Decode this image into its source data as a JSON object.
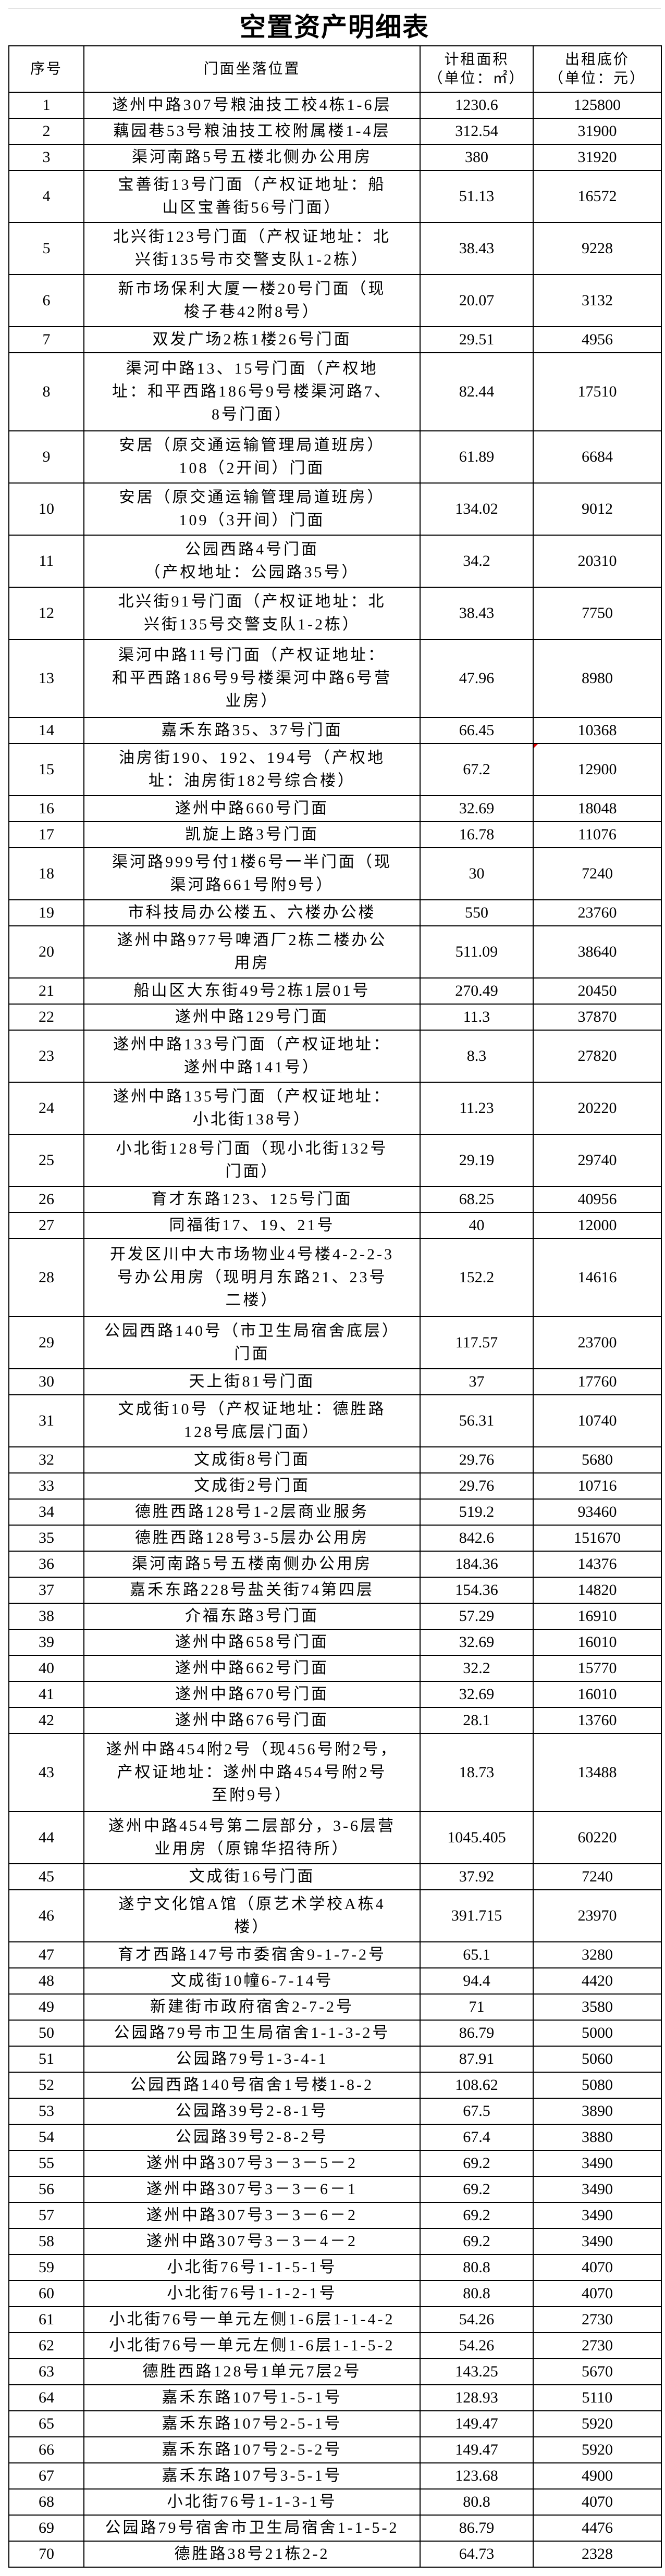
{
  "title": "空置资产明细表",
  "headers": {
    "no": "序号",
    "address": "门面坐落位置",
    "area": "计租面积",
    "area_unit": "（单位：㎡）",
    "price": "出租底价",
    "price_unit": "（单位：元）"
  },
  "colors": {
    "border": "#000000",
    "comment_marker": "#e00000"
  },
  "rows": [
    {
      "no": "1",
      "address": "遂州中路307号粮油技工校4栋1-6层",
      "area": "1230.6",
      "price": "125800"
    },
    {
      "no": "2",
      "address": "藕园巷53号粮油技工校附属楼1-4层",
      "area": "312.54",
      "price": "31900"
    },
    {
      "no": "3",
      "address": "渠河南路5号五楼北侧办公用房",
      "area": "380",
      "price": "31920"
    },
    {
      "no": "4",
      "address": "宝善街13号门面（产权证地址：船\n山区宝善街56号门面）",
      "area": "51.13",
      "price": "16572"
    },
    {
      "no": "5",
      "address": "北兴街123号门面（产权证地址：北\n兴街135号市交警支队1-2栋）",
      "area": "38.43",
      "price": "9228"
    },
    {
      "no": "6",
      "address": "新市场保利大厦一楼20号门面（现\n梭子巷42附8号）",
      "area": "20.07",
      "price": "3132"
    },
    {
      "no": "7",
      "address": "双发广场2栋1楼26号门面",
      "area": "29.51",
      "price": "4956"
    },
    {
      "no": "8",
      "address": "渠河中路13、15号门面（产权地\n址：和平西路186号9号楼渠河路7、\n8号门面）",
      "area": "82.44",
      "price": "17510"
    },
    {
      "no": "9",
      "address": "安居（原交通运输管理局道班房）\n108（2开间）门面",
      "area": "61.89",
      "price": "6684"
    },
    {
      "no": "10",
      "address": "安居（原交通运输管理局道班房）\n109（3开间）门面",
      "area": "134.02",
      "price": "9012"
    },
    {
      "no": "11",
      "address": "公园西路4号门面\n（产权地址：公园路35号）",
      "area": "34.2",
      "price": "20310"
    },
    {
      "no": "12",
      "address": "北兴街91号门面（产权证地址：北\n兴街135号交警支队1-2栋）",
      "area": "38.43",
      "price": "7750"
    },
    {
      "no": "13",
      "address": "渠河中路11号门面（产权证地址：\n和平西路186号9号楼渠河中路6号营\n业房）",
      "area": "47.96",
      "price": "8980"
    },
    {
      "no": "14",
      "address": "嘉禾东路35、37号门面",
      "area": "66.45",
      "price": "10368"
    },
    {
      "no": "15",
      "address": "油房街190、192、194号（产权地\n址：油房街182号综合楼）",
      "area": "67.2",
      "price": "12900",
      "comment": true
    },
    {
      "no": "16",
      "address": "遂州中路660号门面",
      "area": "32.69",
      "price": "18048"
    },
    {
      "no": "17",
      "address": "凯旋上路3号门面",
      "area": "16.78",
      "price": "11076"
    },
    {
      "no": "18",
      "address": "渠河路999号付1楼6号一半门面（现\n渠河路661号附9号）",
      "area": "30",
      "price": "7240"
    },
    {
      "no": "19",
      "address": "市科技局办公楼五、六楼办公楼",
      "area": "550",
      "price": "23760"
    },
    {
      "no": "20",
      "address": "遂州中路977号啤酒厂2栋二楼办公\n用房",
      "area": "511.09",
      "price": "38640"
    },
    {
      "no": "21",
      "address": "船山区大东街49号2栋1层01号",
      "area": "270.49",
      "price": "20450"
    },
    {
      "no": "22",
      "address": "遂州中路129号门面",
      "area": "11.3",
      "price": "37870"
    },
    {
      "no": "23",
      "address": "遂州中路133号门面（产权证地址：\n遂州中路141号）",
      "area": "8.3",
      "price": "27820"
    },
    {
      "no": "24",
      "address": "遂州中路135号门面（产权证地址：\n小北街138号）",
      "area": "11.23",
      "price": "20220"
    },
    {
      "no": "25",
      "address": "小北街128号门面（现小北街132号\n门面）",
      "area": "29.19",
      "price": "29740"
    },
    {
      "no": "26",
      "address": "育才东路123、125号门面",
      "area": "68.25",
      "price": "40956"
    },
    {
      "no": "27",
      "address": "同福街17、19、21号",
      "area": "40",
      "price": "12000"
    },
    {
      "no": "28",
      "address": "开发区川中大市场物业4号楼4-2-2-3\n号办公用房（现明月东路21、23号\n二楼）",
      "area": "152.2",
      "price": "14616"
    },
    {
      "no": "29",
      "address": "公园西路140号（市卫生局宿舍底层）\n门面",
      "area": "117.57",
      "price": "23700"
    },
    {
      "no": "30",
      "address": "天上街81号门面",
      "area": "37",
      "price": "17760"
    },
    {
      "no": "31",
      "address": "文成街10号（产权证地址：德胜路\n128号底层门面）",
      "area": "56.31",
      "price": "10740"
    },
    {
      "no": "32",
      "address": "文成街8号门面",
      "area": "29.76",
      "price": "5680"
    },
    {
      "no": "33",
      "address": "文成街2号门面",
      "area": "29.76",
      "price": "10716"
    },
    {
      "no": "34",
      "address": "德胜西路128号1-2层商业服务",
      "area": "519.2",
      "price": "93460"
    },
    {
      "no": "35",
      "address": "德胜西路128号3-5层办公用房",
      "area": "842.6",
      "price": "151670"
    },
    {
      "no": "36",
      "address": "渠河南路5号五楼南侧办公用房",
      "area": "184.36",
      "price": "14376"
    },
    {
      "no": "37",
      "address": "嘉禾东路228号盐关街74第四层",
      "area": "154.36",
      "price": "14820"
    },
    {
      "no": "38",
      "address": "介福东路3号门面",
      "area": "57.29",
      "price": "16910"
    },
    {
      "no": "39",
      "address": "遂州中路658号门面",
      "area": "32.69",
      "price": "16010"
    },
    {
      "no": "40",
      "address": "遂州中路662号门面",
      "area": "32.2",
      "price": "15770"
    },
    {
      "no": "41",
      "address": "遂州中路670号门面",
      "area": "32.69",
      "price": "16010"
    },
    {
      "no": "42",
      "address": "遂州中路676号门面",
      "area": "28.1",
      "price": "13760"
    },
    {
      "no": "43",
      "address": "遂州中路454附2号（现456号附2号，\n产权证地址：遂州中路454号附2号\n至附9号）",
      "area": "18.73",
      "price": "13488"
    },
    {
      "no": "44",
      "address": "遂州中路454号第二层部分，3-6层营\n业用房（原锦华招待所）",
      "area": "1045.405",
      "price": "60220"
    },
    {
      "no": "45",
      "address": "文成街16号门面",
      "area": "37.92",
      "price": "7240"
    },
    {
      "no": "46",
      "address": "遂宁文化馆A馆（原艺术学校A栋4\n楼）",
      "area": "391.715",
      "price": "23970"
    },
    {
      "no": "47",
      "address": "育才西路147号市委宿舍9-1-7-2号",
      "area": "65.1",
      "price": "3280"
    },
    {
      "no": "48",
      "address": "文成街10幢6-7-14号",
      "area": "94.4",
      "price": "4420"
    },
    {
      "no": "49",
      "address": "新建街市政府宿舍2-7-2号",
      "area": "71",
      "price": "3580"
    },
    {
      "no": "50",
      "address": "公园路79号市卫生局宿舍1-1-3-2号",
      "area": "86.79",
      "price": "5000"
    },
    {
      "no": "51",
      "address": "公园路79号1-3-4-1",
      "area": "87.91",
      "price": "5060"
    },
    {
      "no": "52",
      "address": "公园西路140号宿舍1号楼1-8-2",
      "area": "108.62",
      "price": "5080"
    },
    {
      "no": "53",
      "address": "公园路39号2-8-1号",
      "area": "67.5",
      "price": "3890"
    },
    {
      "no": "54",
      "address": "公园路39号2-8-2号",
      "area": "67.4",
      "price": "3880"
    },
    {
      "no": "55",
      "address": "遂州中路307号3－3－5－2",
      "area": "69.2",
      "price": "3490"
    },
    {
      "no": "56",
      "address": "遂州中路307号3－3－6－1",
      "area": "69.2",
      "price": "3490"
    },
    {
      "no": "57",
      "address": "遂州中路307号3－3－6－2",
      "area": "69.2",
      "price": "3490"
    },
    {
      "no": "58",
      "address": "遂州中路307号3－3－4－2",
      "area": "69.2",
      "price": "3490"
    },
    {
      "no": "59",
      "address": "小北街76号1-1-5-1号",
      "area": "80.8",
      "price": "4070"
    },
    {
      "no": "60",
      "address": "小北街76号1-1-2-1号",
      "area": "80.8",
      "price": "4070"
    },
    {
      "no": "61",
      "address": "小北街76号一单元左侧1-6层1-1-4-2",
      "area": "54.26",
      "price": "2730"
    },
    {
      "no": "62",
      "address": "小北街76号一单元左侧1-6层1-1-5-2",
      "area": "54.26",
      "price": "2730"
    },
    {
      "no": "63",
      "address": "德胜西路128号1单元7层2号",
      "area": "143.25",
      "price": "5670"
    },
    {
      "no": "64",
      "address": "嘉禾东路107号1-5-1号",
      "area": "128.93",
      "price": "5110"
    },
    {
      "no": "65",
      "address": "嘉禾东路107号2-5-1号",
      "area": "149.47",
      "price": "5920"
    },
    {
      "no": "66",
      "address": "嘉禾东路107号2-5-2号",
      "area": "149.47",
      "price": "5920"
    },
    {
      "no": "67",
      "address": "嘉禾东路107号3-5-1号",
      "area": "123.68",
      "price": "4900"
    },
    {
      "no": "68",
      "address": "小北街76号1-1-3-1号",
      "area": "80.8",
      "price": "4070"
    },
    {
      "no": "69",
      "address": "公园路79号宿舍市卫生局宿舍1-1-5-2",
      "area": "86.79",
      "price": "4476"
    },
    {
      "no": "70",
      "address": "德胜路38号21栋2-2",
      "area": "64.73",
      "price": "2328"
    }
  ]
}
